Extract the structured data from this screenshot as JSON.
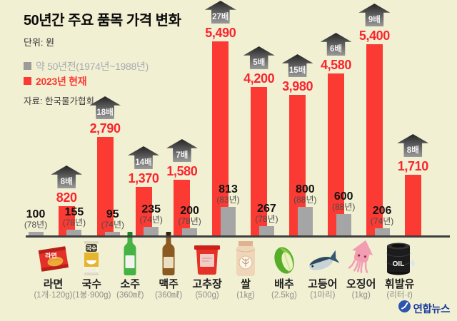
{
  "header": {
    "title": "50년간 주요 품목 가격 변화",
    "unit": "단위: 원",
    "legend_old": "약 50년전(1974년~1988년)",
    "legend_new": "2023년 현재",
    "source": "자료: 한국물가협회"
  },
  "watermark": {
    "brand": "연합뉴스"
  },
  "colors": {
    "background": "#f2f0d3",
    "old_bar": "#a5a5a5",
    "new_bar": "#fb3a33",
    "old_legend_text": "#a7abb0",
    "badge_gradient_top": "#252525",
    "badge_gradient_bottom": "#9a9a9a"
  },
  "chart_data": {
    "type": "bar",
    "title": "50년간 주요 품목 가격 변화",
    "unit": "원",
    "ylim": [
      0,
      5490
    ],
    "grid": false,
    "legend_position": "top-left",
    "categories": [
      "라면",
      "국수",
      "소주",
      "맥주",
      "고추장",
      "쌀",
      "배추",
      "고등어",
      "오징어",
      "휘발유"
    ],
    "series": [
      {
        "name": "약 50년전(1974년~1988년)",
        "values": [
          100,
          155,
          95,
          235,
          200,
          813,
          267,
          800,
          600,
          206
        ]
      },
      {
        "name": "2023년 현재",
        "values": [
          820,
          2790,
          1370,
          1580,
          5490,
          4200,
          3980,
          4580,
          5400,
          1710
        ]
      }
    ],
    "items": [
      {
        "name": "라면",
        "quantity": "(1개·120g)",
        "old_value": 100,
        "old_label": "100",
        "old_year": "(78년)",
        "new_value": 820,
        "new_label": "820",
        "multiplier": "8배",
        "icon": "ramen-icon"
      },
      {
        "name": "국수",
        "quantity": "(1봉·900g)",
        "old_value": 155,
        "old_label": "155",
        "old_year": "(78년)",
        "new_value": 2790,
        "new_label": "2,790",
        "multiplier": "18배",
        "icon": "noodles-icon"
      },
      {
        "name": "소주",
        "quantity": "(360㎖)",
        "old_value": 95,
        "old_label": "95",
        "old_year": "(74년)",
        "new_value": 1370,
        "new_label": "1,370",
        "multiplier": "14배",
        "icon": "soju-icon"
      },
      {
        "name": "맥주",
        "quantity": "(360㎖)",
        "old_value": 235,
        "old_label": "235",
        "old_year": "(74년)",
        "new_value": 1580,
        "new_label": "1,580",
        "multiplier": "7배",
        "icon": "beer-icon"
      },
      {
        "name": "고추장",
        "quantity": "(500g)",
        "old_value": 200,
        "old_label": "200",
        "old_year": "(78년)",
        "new_value": 5490,
        "new_label": "5,490",
        "multiplier": "27배",
        "icon": "gochujang-icon"
      },
      {
        "name": "쌀",
        "quantity": "(1㎏)",
        "old_value": 813,
        "old_label": "813",
        "old_year": "(83년)",
        "new_value": 4200,
        "new_label": "4,200",
        "multiplier": "5배",
        "icon": "rice-icon"
      },
      {
        "name": "배추",
        "quantity": "(2.5kg)",
        "old_value": 267,
        "old_label": "267",
        "old_year": "(78년)",
        "new_value": 3980,
        "new_label": "3,980",
        "multiplier": "15배",
        "icon": "cabbage-icon"
      },
      {
        "name": "고등어",
        "quantity": "(1마리)",
        "old_value": 800,
        "old_label": "800",
        "old_year": "(88년)",
        "new_value": 4580,
        "new_label": "4,580",
        "multiplier": "6배",
        "icon": "mackerel-icon"
      },
      {
        "name": "오징어",
        "quantity": "(1kg)",
        "old_value": 600,
        "old_label": "600",
        "old_year": "(88년)",
        "new_value": 5400,
        "new_label": "5,400",
        "multiplier": "9배",
        "icon": "squid-icon"
      },
      {
        "name": "휘발유",
        "quantity": "(리터·ℓ)",
        "old_value": 206,
        "old_label": "206",
        "old_year": "(74년)",
        "new_value": 1710,
        "new_label": "1,710",
        "multiplier": "8배",
        "icon": "oil-icon"
      }
    ]
  }
}
